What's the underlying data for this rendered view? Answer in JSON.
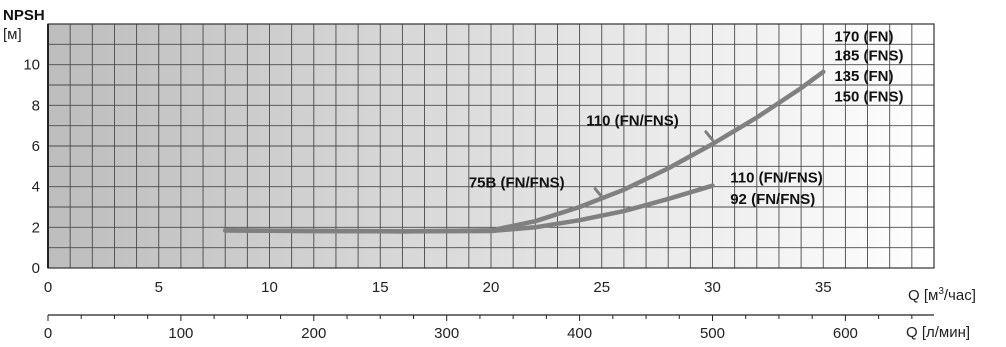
{
  "chart_data": {
    "type": "line",
    "title": "",
    "ylabel": "NPSH",
    "yunit": "[м]",
    "xlabel": "Q [м³/час]",
    "xlabel_parts": {
      "prefix": "Q [м",
      "sup": "3",
      "suffix": "/час]"
    },
    "x2label": "Q [л/мин]",
    "xlim": [
      0,
      40
    ],
    "ylim": [
      0,
      12
    ],
    "x_ticks": [
      0,
      5,
      10,
      15,
      20,
      25,
      30,
      35
    ],
    "y_ticks": [
      0,
      2,
      4,
      6,
      8,
      10
    ],
    "x2_ticks": [
      0,
      100,
      200,
      300,
      400,
      500,
      600
    ],
    "x2_factor": 16.6667,
    "grid": true,
    "series": [
      {
        "name": "",
        "x": [
          8,
          12,
          16,
          20,
          22,
          24,
          26,
          28,
          30,
          32,
          34,
          35
        ],
        "y": [
          1.85,
          1.82,
          1.8,
          1.85,
          2.3,
          3.0,
          3.85,
          4.9,
          6.1,
          7.4,
          8.85,
          9.65
        ]
      },
      {
        "name": "",
        "x": [
          8,
          12,
          16,
          20,
          22,
          24,
          26,
          28,
          30
        ],
        "y": [
          1.85,
          1.82,
          1.8,
          1.82,
          2.0,
          2.35,
          2.8,
          3.4,
          4.05
        ]
      }
    ],
    "labels": [
      {
        "text": "170 (FN)",
        "x": 35.5,
        "y": 11.15
      },
      {
        "text": "185 (FNS)",
        "x": 35.5,
        "y": 10.2
      },
      {
        "text": "135 (FN)",
        "x": 35.5,
        "y": 9.2
      },
      {
        "text": "150 (FNS)",
        "x": 35.5,
        "y": 8.2
      },
      {
        "text": "110 (FN/FNS)",
        "x": 24.3,
        "y": 7.0
      },
      {
        "text": "75B (FN/FNS)",
        "x": 19.0,
        "y": 3.95
      },
      {
        "text": "110 (FN/FNS)",
        "x": 30.8,
        "y": 4.2
      },
      {
        "text": "92 (FN/FNS)",
        "x": 30.8,
        "y": 3.15
      }
    ],
    "pointers": [
      {
        "x": [
          29.7,
          30.0
        ],
        "y": [
          6.7,
          6.3
        ]
      },
      {
        "x": [
          24.7,
          25.0
        ],
        "y": [
          3.9,
          3.5
        ]
      }
    ],
    "colors": {
      "curve": "#808080",
      "grid": "#4a4a4a",
      "gradient_left": "#bdbdbd",
      "gradient_right": "#ffffff"
    }
  }
}
